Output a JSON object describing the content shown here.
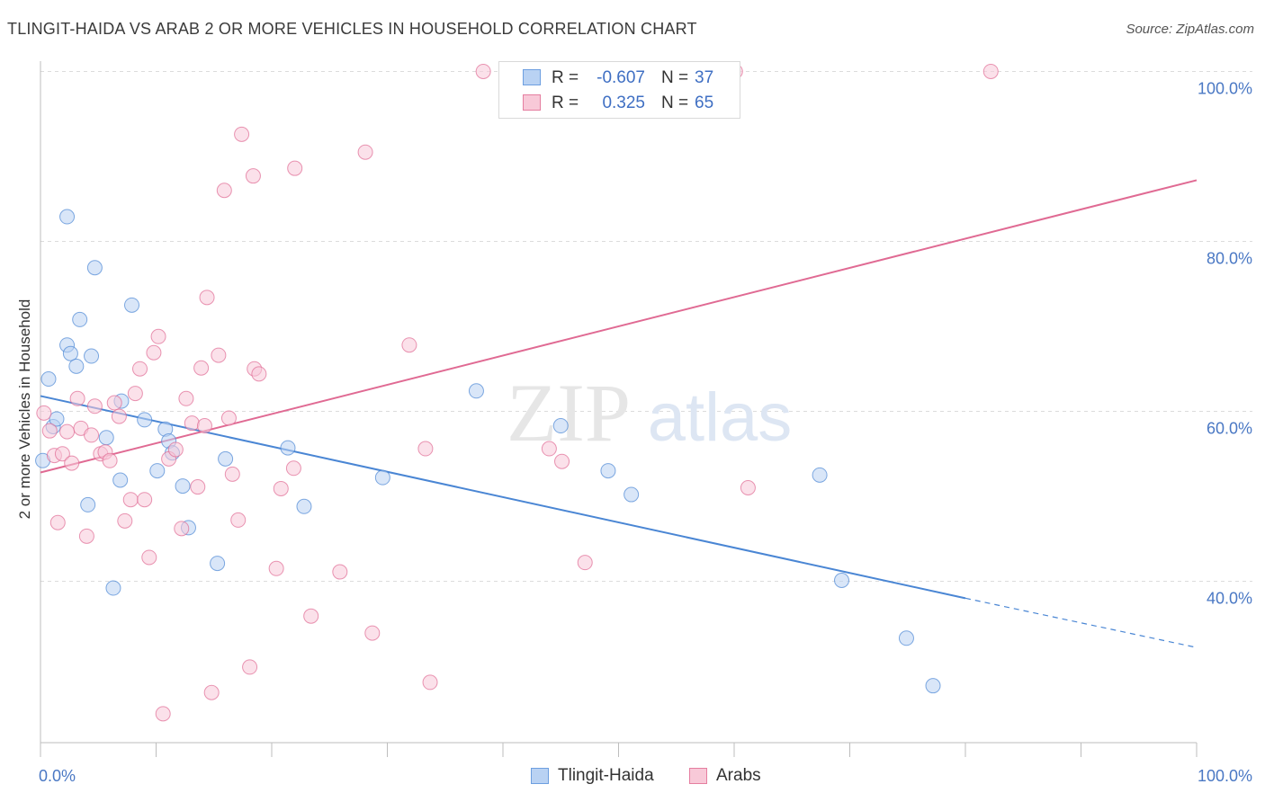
{
  "header": {
    "title": "TLINGIT-HAIDA VS ARAB 2 OR MORE VEHICLES IN HOUSEHOLD CORRELATION CHART",
    "source": "Source: ZipAtlas.com"
  },
  "watermark": {
    "zip": "ZIP",
    "atlas": "atlas"
  },
  "legend": {
    "rows": [
      {
        "r_label": "R =",
        "r_value": "-0.607",
        "n_label": "N =",
        "n_value": "37",
        "color": "#6d9fe0",
        "fill": "#b9d2f3"
      },
      {
        "r_label": "R =",
        "r_value": "0.325",
        "n_label": "N =",
        "n_value": "65",
        "color": "#e57ea0",
        "fill": "#f8c9d8"
      }
    ]
  },
  "bottom_legend": {
    "items": [
      {
        "label": "Tlingit-Haida",
        "color": "#6d9fe0",
        "fill": "#b9d2f3"
      },
      {
        "label": "Arabs",
        "color": "#e57ea0",
        "fill": "#f8c9d8"
      }
    ]
  },
  "chart_data": {
    "type": "scatter",
    "title": "TLINGIT-HAIDA VS ARAB 2 OR MORE VEHICLES IN HOUSEHOLD CORRELATION CHART",
    "xlabel": "",
    "ylabel": "2 or more Vehicles in Household",
    "xlim": [
      0,
      100
    ],
    "ylim": [
      21,
      101
    ],
    "x_tick_labels": [
      "0.0%",
      "100.0%"
    ],
    "y_ticks": [
      40,
      60,
      80,
      100
    ],
    "y_tick_labels": [
      "40.0%",
      "60.0%",
      "80.0%",
      "100.0%"
    ],
    "grid": true,
    "legend_position": "top-center",
    "series": [
      {
        "name": "Tlingit-Haida",
        "color": "#4a86d4",
        "fill": "#b9d2f3",
        "trend": {
          "x0": 0,
          "y0": 61.8,
          "x1": 80,
          "y1": 38.0,
          "dashed_to": 100,
          "dashed_y": 32.2
        },
        "points": [
          [
            0.2,
            54.2
          ],
          [
            0.7,
            63.8
          ],
          [
            1.1,
            58.2
          ],
          [
            1.4,
            59.1
          ],
          [
            2.3,
            67.8
          ],
          [
            2.3,
            82.9
          ],
          [
            2.6,
            66.8
          ],
          [
            3.1,
            65.3
          ],
          [
            3.4,
            70.8
          ],
          [
            4.1,
            49.0
          ],
          [
            4.4,
            66.5
          ],
          [
            4.7,
            76.9
          ],
          [
            5.7,
            56.9
          ],
          [
            6.3,
            39.2
          ],
          [
            6.9,
            51.9
          ],
          [
            7.0,
            61.2
          ],
          [
            7.9,
            72.5
          ],
          [
            9.0,
            59.0
          ],
          [
            10.1,
            53.0
          ],
          [
            10.8,
            57.9
          ],
          [
            11.1,
            56.5
          ],
          [
            11.4,
            55.1
          ],
          [
            12.3,
            51.2
          ],
          [
            12.8,
            46.3
          ],
          [
            15.3,
            42.1
          ],
          [
            16.0,
            54.4
          ],
          [
            21.4,
            55.7
          ],
          [
            22.8,
            48.8
          ],
          [
            29.6,
            52.2
          ],
          [
            37.7,
            62.4
          ],
          [
            45.0,
            58.3
          ],
          [
            49.1,
            53.0
          ],
          [
            51.1,
            50.2
          ],
          [
            67.4,
            52.5
          ],
          [
            69.3,
            40.1
          ],
          [
            74.9,
            33.3
          ],
          [
            77.2,
            27.7
          ]
        ]
      },
      {
        "name": "Arabs",
        "color": "#e06a93",
        "fill": "#f8c9d8",
        "trend": {
          "x0": 0,
          "y0": 52.8,
          "x1": 100,
          "y1": 87.2
        },
        "points": [
          [
            0.3,
            59.8
          ],
          [
            0.8,
            57.7
          ],
          [
            1.2,
            54.8
          ],
          [
            1.5,
            46.9
          ],
          [
            1.9,
            55.0
          ],
          [
            2.3,
            57.6
          ],
          [
            2.7,
            53.9
          ],
          [
            3.2,
            61.5
          ],
          [
            3.5,
            58.0
          ],
          [
            4.0,
            45.3
          ],
          [
            4.4,
            57.2
          ],
          [
            4.7,
            60.6
          ],
          [
            5.2,
            55.0
          ],
          [
            5.6,
            55.2
          ],
          [
            6.0,
            54.2
          ],
          [
            6.4,
            61.0
          ],
          [
            6.8,
            59.4
          ],
          [
            7.3,
            47.1
          ],
          [
            7.8,
            49.6
          ],
          [
            8.2,
            62.1
          ],
          [
            8.6,
            65.0
          ],
          [
            9.0,
            49.6
          ],
          [
            9.4,
            42.8
          ],
          [
            9.8,
            66.9
          ],
          [
            10.2,
            68.8
          ],
          [
            10.6,
            24.4
          ],
          [
            11.1,
            54.4
          ],
          [
            11.7,
            55.5
          ],
          [
            12.2,
            46.2
          ],
          [
            12.6,
            61.5
          ],
          [
            13.1,
            58.6
          ],
          [
            13.6,
            51.1
          ],
          [
            13.9,
            65.1
          ],
          [
            14.2,
            58.3
          ],
          [
            14.4,
            73.4
          ],
          [
            14.8,
            26.9
          ],
          [
            15.4,
            66.6
          ],
          [
            15.9,
            86.0
          ],
          [
            16.3,
            59.2
          ],
          [
            16.6,
            52.6
          ],
          [
            17.1,
            47.2
          ],
          [
            17.4,
            92.6
          ],
          [
            18.1,
            29.9
          ],
          [
            18.4,
            87.7
          ],
          [
            18.5,
            65.0
          ],
          [
            18.9,
            64.4
          ],
          [
            20.4,
            41.5
          ],
          [
            20.8,
            50.9
          ],
          [
            21.9,
            53.3
          ],
          [
            22.0,
            88.6
          ],
          [
            23.4,
            35.9
          ],
          [
            25.9,
            41.1
          ],
          [
            28.1,
            90.5
          ],
          [
            28.7,
            33.9
          ],
          [
            31.9,
            67.8
          ],
          [
            33.3,
            55.6
          ],
          [
            33.7,
            28.1
          ],
          [
            38.3,
            100.0
          ],
          [
            44.0,
            55.6
          ],
          [
            45.1,
            54.1
          ],
          [
            47.1,
            42.2
          ],
          [
            47.2,
            100.0
          ],
          [
            60.1,
            100.0
          ],
          [
            61.2,
            51.0
          ],
          [
            82.2,
            100.0
          ]
        ]
      }
    ]
  }
}
